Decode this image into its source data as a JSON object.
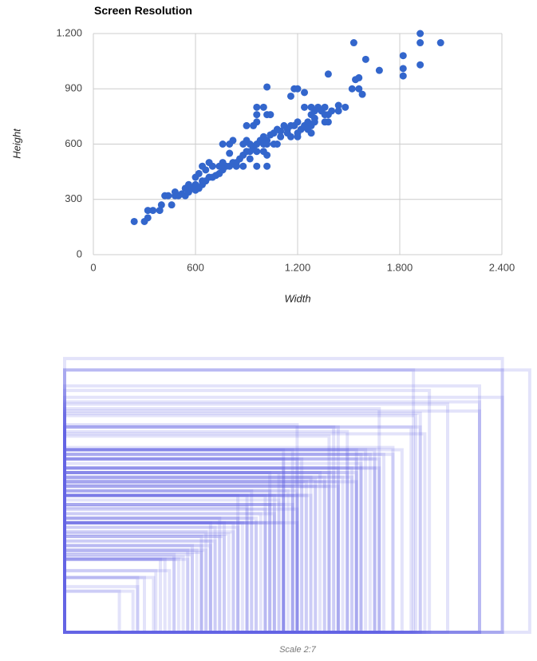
{
  "chart_data": [
    {
      "type": "scatter",
      "title": "Screen Resolution",
      "x_label": "Width",
      "y_label": "Height",
      "color": "#3366cc",
      "grid": true,
      "xlim": [
        0,
        2400
      ],
      "ylim": [
        0,
        1200
      ],
      "xticks": [
        0,
        600,
        {
          "value": 1200,
          "label": "1.200"
        },
        {
          "value": 1800,
          "label": "1.800"
        },
        {
          "value": 2400,
          "label": "2.400"
        }
      ],
      "yticks": [
        0,
        300,
        600,
        900,
        {
          "value": 1200,
          "label": "1.200"
        }
      ],
      "x": [
        240,
        300,
        320,
        320,
        350,
        390,
        400,
        420,
        460,
        480,
        500,
        520,
        540,
        560,
        580,
        600,
        600,
        620,
        640,
        640,
        660,
        680,
        700,
        720,
        740,
        760,
        780,
        800,
        820,
        840,
        860,
        880,
        900,
        920,
        940,
        960,
        980,
        1000,
        1020,
        1040,
        1060,
        1080,
        1100,
        1120,
        1140,
        1160,
        1180,
        1200,
        1220,
        1240,
        1260,
        1280,
        1300,
        1320,
        1340,
        1360,
        1380,
        1380,
        1400,
        1440,
        1480,
        1520,
        1540,
        1560,
        1560,
        1580,
        1600,
        1680,
        1820,
        1820,
        1820,
        1920,
        1920,
        1920,
        2040,
        1530,
        1380,
        1180,
        1200,
        1240,
        1160,
        1020,
        960,
        1000,
        960,
        960,
        1020,
        1040,
        940,
        900,
        880,
        900,
        920,
        960,
        1000,
        1000,
        1020,
        1020,
        1020,
        960,
        920,
        760,
        800,
        820,
        800,
        640,
        680,
        660,
        600,
        560,
        540,
        620,
        700,
        740,
        880,
        840,
        760,
        1080,
        1060,
        1100,
        1200,
        1200,
        1280,
        1280,
        1300,
        1260,
        1160,
        1140,
        1360,
        1240,
        1280,
        440,
        480,
        1300,
        1360,
        1440
      ],
      "y": [
        180,
        180,
        200,
        240,
        240,
        240,
        270,
        320,
        270,
        320,
        320,
        330,
        320,
        340,
        360,
        350,
        380,
        360,
        400,
        380,
        400,
        420,
        420,
        430,
        440,
        460,
        480,
        480,
        500,
        500,
        520,
        540,
        560,
        560,
        580,
        600,
        620,
        640,
        620,
        650,
        660,
        680,
        670,
        700,
        680,
        700,
        700,
        720,
        680,
        700,
        720,
        760,
        780,
        800,
        780,
        760,
        720,
        760,
        780,
        810,
        800,
        900,
        950,
        960,
        900,
        870,
        1060,
        1000,
        1080,
        1010,
        970,
        1200,
        1150,
        1030,
        1150,
        1150,
        980,
        900,
        900,
        880,
        860,
        910,
        800,
        800,
        760,
        720,
        760,
        760,
        700,
        700,
        600,
        620,
        600,
        560,
        560,
        600,
        600,
        540,
        480,
        480,
        520,
        600,
        600,
        620,
        550,
        480,
        500,
        460,
        420,
        380,
        360,
        440,
        480,
        480,
        480,
        480,
        500,
        600,
        600,
        640,
        640,
        660,
        660,
        700,
        740,
        680,
        640,
        660,
        800,
        800,
        800,
        320,
        340,
        720,
        720,
        780
      ]
    },
    {
      "type": "rectangles",
      "caption": "Scale 2:7",
      "color": "#6464e6"
    }
  ]
}
